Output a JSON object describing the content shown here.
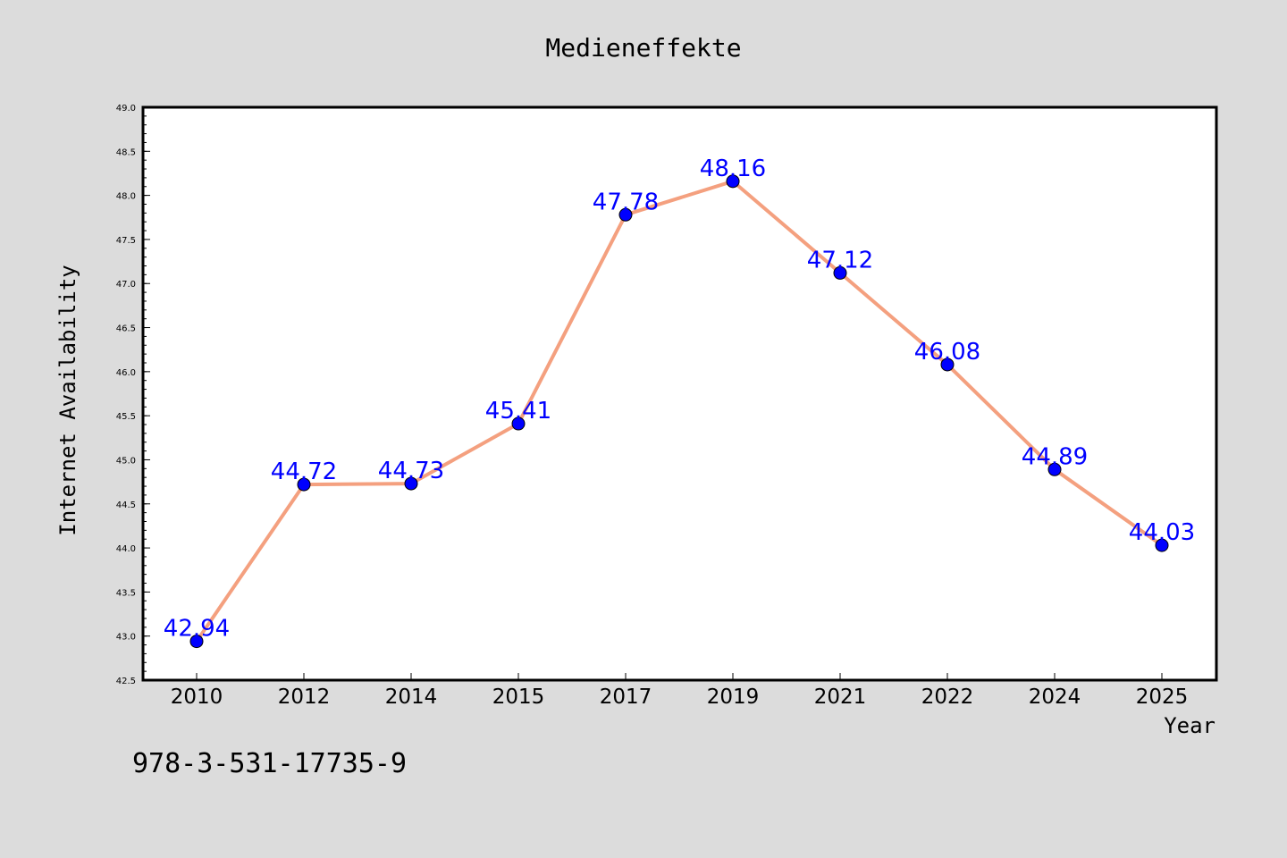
{
  "chart_data": {
    "type": "line",
    "title": "Medieneffekte",
    "xlabel": "Year",
    "ylabel": "Internet Availability",
    "categories": [
      "2010",
      "2012",
      "2014",
      "2015",
      "2017",
      "2019",
      "2021",
      "2022",
      "2024",
      "2025"
    ],
    "series": [
      {
        "values": [
          42.94,
          44.72,
          44.73,
          45.41,
          47.78,
          48.16,
          47.12,
          46.08,
          44.89,
          44.03
        ],
        "labels": [
          "42.94",
          "44.72",
          "44.73",
          "45.41",
          "47.78",
          "48.16",
          "47.12",
          "46.08",
          "44.89",
          "44.03"
        ]
      }
    ],
    "ylim": [
      42.5,
      49.0
    ],
    "yticks": [
      "42.5",
      "43.0",
      "43.5",
      "44.0",
      "44.5",
      "45.0",
      "45.5",
      "46.0",
      "46.5",
      "47.0",
      "47.5",
      "48.0",
      "48.5",
      "49.0"
    ],
    "grid": false,
    "colors": {
      "line": "#f4a07f",
      "marker": "#0000ff",
      "label": "#0000ff",
      "background": "#dcdcdc",
      "plot_background": "#ffffff"
    }
  },
  "footer_text": "978-3-531-17735-9"
}
